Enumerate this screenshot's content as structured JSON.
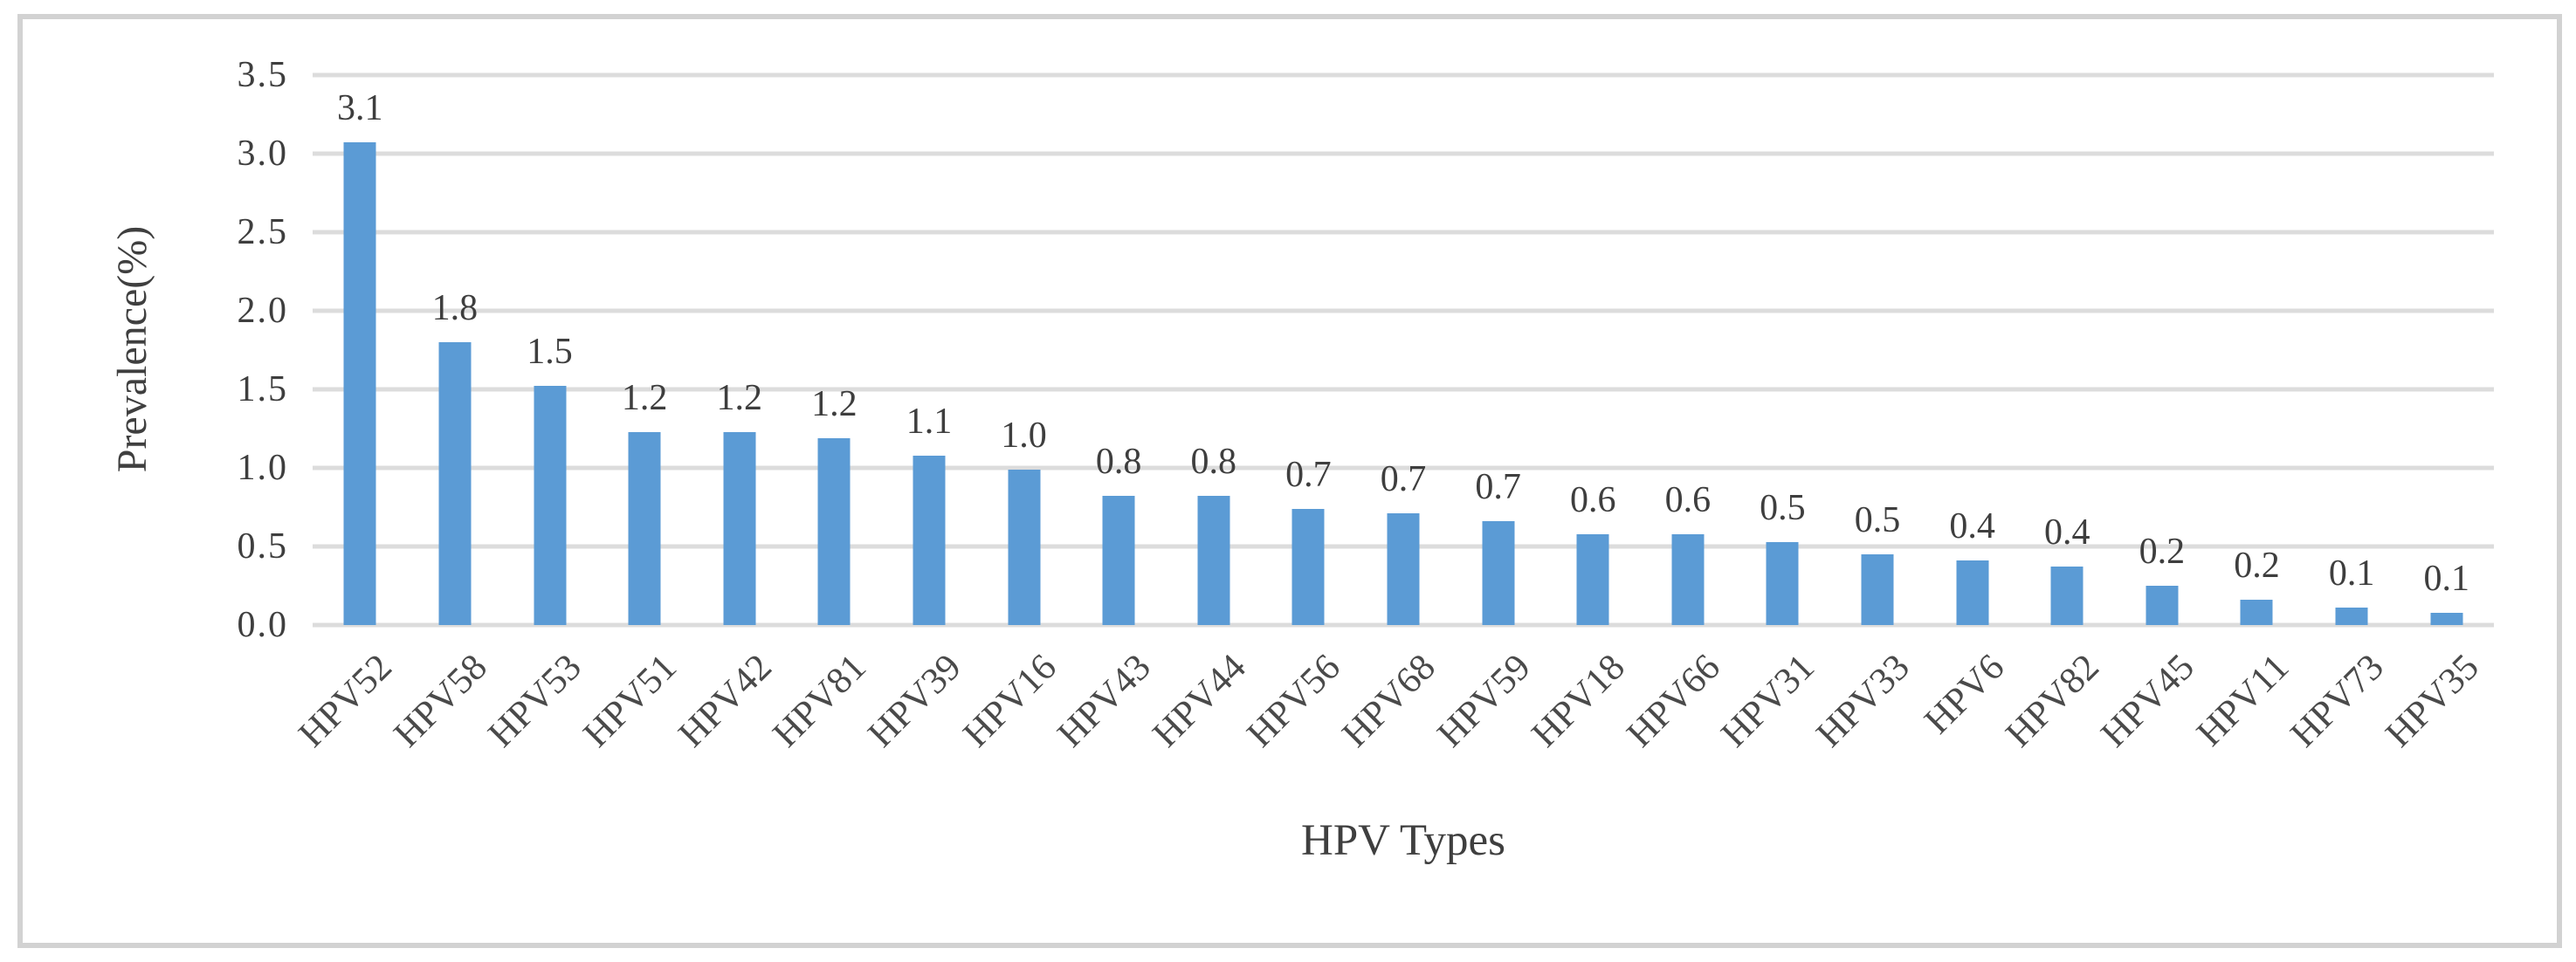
{
  "figure": {
    "background_color": "#ffffff",
    "frame_border_color": "#d2d2d2"
  },
  "chart_data": {
    "type": "bar",
    "title": "",
    "xlabel": "HPV Types",
    "ylabel": "Prevalence(%)",
    "categories": [
      "HPV52",
      "HPV58",
      "HPV53",
      "HPV51",
      "HPV42",
      "HPV81",
      "HPV39",
      "HPV16",
      "HPV43",
      "HPV44",
      "HPV56",
      "HPV68",
      "HPV59",
      "HPV18",
      "HPV66",
      "HPV31",
      "HPV33",
      "HPV6",
      "HPV82",
      "HPV45",
      "HPV11",
      "HPV73",
      "HPV35"
    ],
    "values": [
      3.1,
      1.8,
      1.5,
      1.2,
      1.2,
      1.2,
      1.1,
      1.0,
      0.8,
      0.8,
      0.7,
      0.7,
      0.7,
      0.6,
      0.6,
      0.5,
      0.5,
      0.4,
      0.4,
      0.2,
      0.2,
      0.1,
      0.1
    ],
    "value_labels": [
      "3.1",
      "1.8",
      "1.5",
      "1.2",
      "1.2",
      "1.2",
      "1.1",
      "1.0",
      "0.8",
      "0.8",
      "0.7",
      "0.7",
      "0.7",
      "0.6",
      "0.6",
      "0.5",
      "0.5",
      "0.4",
      "0.4",
      "0.2",
      "0.2",
      "0.1",
      "0.1"
    ],
    "values_measured": [
      3.07,
      1.8,
      1.52,
      1.23,
      1.23,
      1.19,
      1.08,
      0.99,
      0.82,
      0.82,
      0.74,
      0.71,
      0.66,
      0.58,
      0.58,
      0.53,
      0.45,
      0.41,
      0.37,
      0.25,
      0.16,
      0.11,
      0.08
    ],
    "yticks": [
      "3.5",
      "3.0",
      "2.5",
      "2.0",
      "1.5",
      "1.0",
      "0.5",
      "0.0"
    ],
    "ylim": [
      0,
      3.5
    ],
    "ytick_step": 0.5,
    "grid": true,
    "legend": "none",
    "bar_color": "#5b9bd5",
    "gridline_color": "#dcdcdc",
    "xlabel_rotation_deg": -45
  }
}
